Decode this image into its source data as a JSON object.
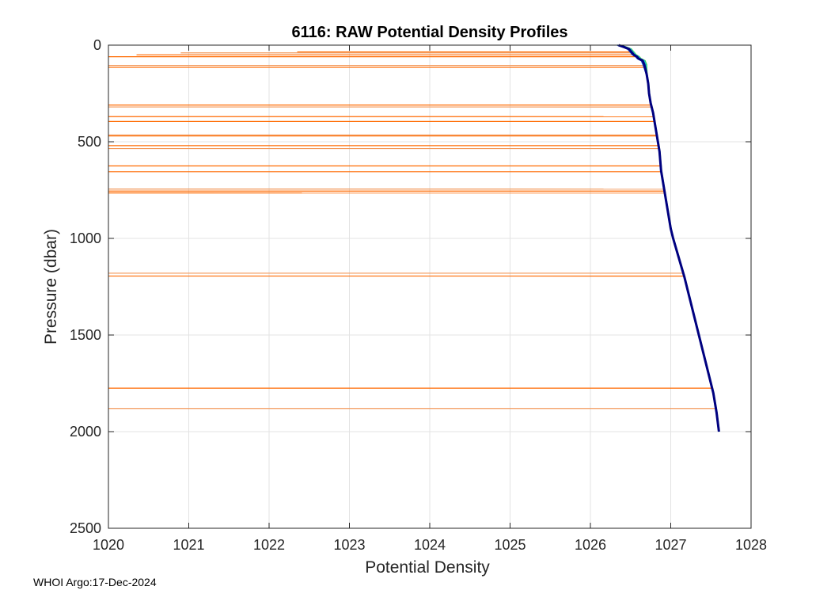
{
  "chart_data": {
    "type": "line",
    "title": "6116: RAW Potential Density Profiles",
    "xlabel": "Potential Density",
    "ylabel": "Pressure (dbar)",
    "xlim": [
      1020,
      1028
    ],
    "ylim": [
      0,
      2500
    ],
    "y_reversed": true,
    "grid": true,
    "legend": "none",
    "x_ticks": [
      1020,
      1021,
      1022,
      1023,
      1024,
      1025,
      1026,
      1027,
      1028
    ],
    "y_ticks": [
      0,
      500,
      1000,
      1500,
      2000,
      2500
    ],
    "colors": {
      "spike": "#ff6a00",
      "spike_light": "#f39a5b",
      "profile_main": "#000080",
      "profile_blue": "#1f5bd8",
      "profile_cyan": "#19c4d8",
      "profile_green": "#49d24a",
      "grid": "#e3e3e3",
      "axis": "#262626"
    },
    "mean_profile": {
      "pressure": [
        0,
        10,
        20,
        30,
        40,
        50,
        60,
        70,
        80,
        100,
        150,
        200,
        250,
        300,
        350,
        400,
        450,
        500,
        550,
        600,
        650,
        700,
        750,
        800,
        850,
        900,
        950,
        1000,
        1100,
        1200,
        1300,
        1400,
        1500,
        1600,
        1700,
        1800,
        1900,
        2000
      ],
      "density": [
        1026.35,
        1026.42,
        1026.48,
        1026.5,
        1026.52,
        1026.54,
        1026.58,
        1026.6,
        1026.65,
        1026.67,
        1026.7,
        1026.72,
        1026.73,
        1026.75,
        1026.78,
        1026.8,
        1026.82,
        1026.84,
        1026.86,
        1026.87,
        1026.88,
        1026.9,
        1026.92,
        1026.94,
        1026.96,
        1026.98,
        1027.0,
        1027.03,
        1027.1,
        1027.17,
        1027.23,
        1027.29,
        1027.35,
        1027.41,
        1027.47,
        1027.53,
        1027.57,
        1027.6
      ]
    },
    "spike_lines": [
      {
        "pressure": 35,
        "density_min": 1022.35
      },
      {
        "pressure": 40,
        "density_min": 1020.9
      },
      {
        "pressure": 50,
        "density_min": 1020.35
      },
      {
        "pressure": 60,
        "density_min": 1020.0
      },
      {
        "pressure": 105,
        "density_min": 1020.0
      },
      {
        "pressure": 115,
        "density_min": 1020.0
      },
      {
        "pressure": 310,
        "density_min": 1020.0
      },
      {
        "pressure": 320,
        "density_min": 1020.0
      },
      {
        "pressure": 370,
        "density_min": 1020.0
      },
      {
        "pressure": 395,
        "density_min": 1020.0
      },
      {
        "pressure": 465,
        "density_min": 1020.0
      },
      {
        "pressure": 470,
        "density_min": 1020.0
      },
      {
        "pressure": 520,
        "density_min": 1020.0
      },
      {
        "pressure": 535,
        "density_min": 1020.0
      },
      {
        "pressure": 625,
        "density_min": 1020.0
      },
      {
        "pressure": 655,
        "density_min": 1020.0
      },
      {
        "pressure": 745,
        "density_min": 1020.0
      },
      {
        "pressure": 755,
        "density_min": 1020.0
      },
      {
        "pressure": 765,
        "density_min": 1020.0
      },
      {
        "pressure": 1180,
        "density_min": 1020.0
      },
      {
        "pressure": 1195,
        "density_min": 1020.0
      },
      {
        "pressure": 1775,
        "density_min": 1020.0
      },
      {
        "pressure": 1880,
        "density_min": 1020.0
      }
    ]
  },
  "footer": {
    "text": "WHOI Argo:17-Dec-2024"
  }
}
